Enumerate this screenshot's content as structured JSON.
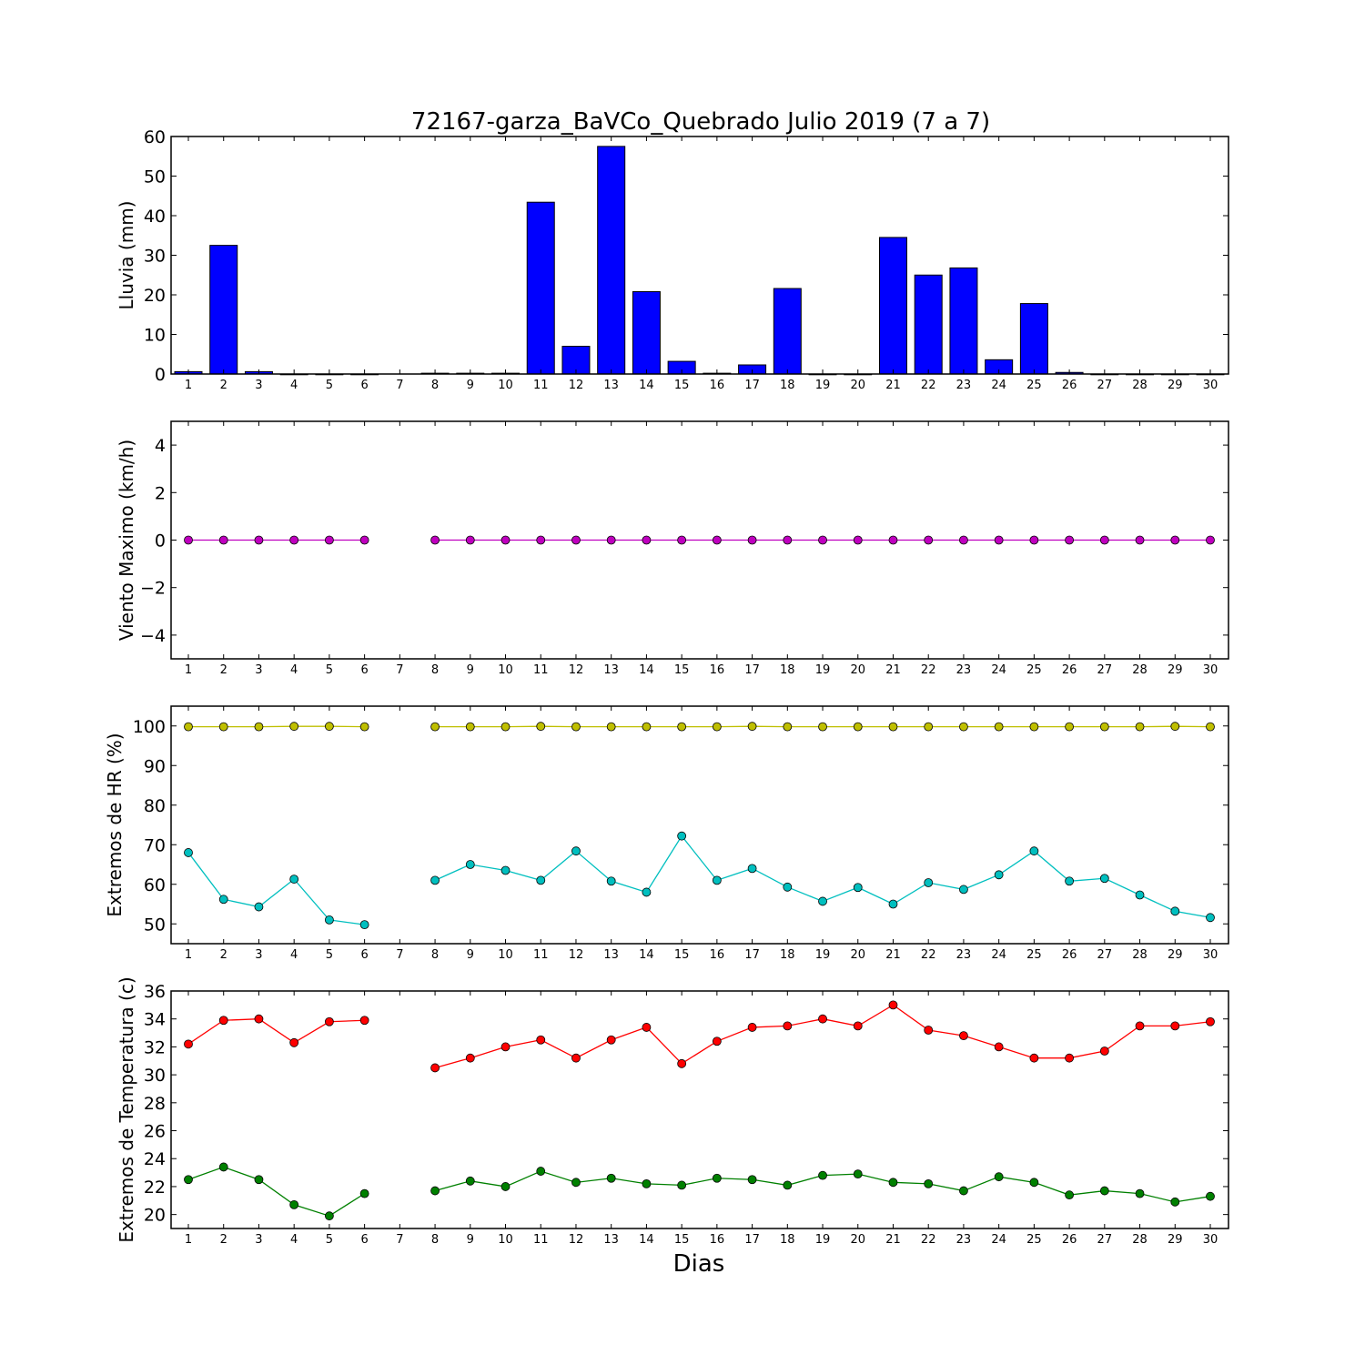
{
  "chart_data": {
    "title": "72167-garza_BaVCo_Quebrado Julio 2019  (7 a 7)",
    "xlabel": "Dias",
    "days": [
      1,
      2,
      3,
      4,
      5,
      6,
      7,
      8,
      9,
      10,
      11,
      12,
      13,
      14,
      15,
      16,
      17,
      18,
      19,
      20,
      21,
      22,
      23,
      24,
      25,
      26,
      27,
      28,
      29,
      30
    ],
    "panels": [
      {
        "id": "rain",
        "type": "bar",
        "ylabel": "Lluvia (mm)",
        "ylim": [
          0,
          60
        ],
        "yticks": [
          0,
          10,
          20,
          30,
          40,
          50,
          60
        ],
        "series": [
          {
            "color": "#0000ff",
            "values": [
              0.6,
              32.5,
              0.6,
              0,
              0,
              0,
              null,
              0.2,
              0.2,
              0.2,
              43.4,
              7.0,
              57.5,
              20.8,
              3.2,
              0.2,
              2.3,
              21.6,
              0,
              0,
              34.5,
              25.0,
              26.8,
              3.6,
              17.8,
              0.4,
              0,
              0,
              0,
              0
            ]
          }
        ]
      },
      {
        "id": "wind",
        "type": "line",
        "ylabel": "Viento Maximo (km/h)",
        "ylim": [
          -5,
          5
        ],
        "yticks": [
          -4,
          -2,
          0,
          2,
          4
        ],
        "series": [
          {
            "color": "#bf00bf",
            "values": [
              0,
              0,
              0,
              0,
              0,
              0,
              null,
              0,
              0,
              0,
              0,
              0,
              0,
              0,
              0,
              0,
              0,
              0,
              0,
              0,
              0,
              0,
              0,
              0,
              0,
              0,
              0,
              0,
              0,
              0
            ]
          }
        ]
      },
      {
        "id": "humidity",
        "type": "line",
        "ylabel": "Extremos de HR (%)",
        "ylim": [
          45,
          105
        ],
        "yticks": [
          50,
          60,
          70,
          80,
          90,
          100
        ],
        "series": [
          {
            "color": "#bfbf00",
            "values": [
              99.8,
              99.8,
              99.8,
              99.9,
              99.9,
              99.8,
              null,
              99.8,
              99.8,
              99.8,
              99.9,
              99.8,
              99.8,
              99.8,
              99.8,
              99.8,
              99.9,
              99.8,
              99.8,
              99.8,
              99.8,
              99.8,
              99.8,
              99.8,
              99.8,
              99.8,
              99.8,
              99.8,
              99.9,
              99.8
            ]
          },
          {
            "color": "#00bfbf",
            "values": [
              68.0,
              56.2,
              54.3,
              61.3,
              51.0,
              49.8,
              null,
              61.0,
              65.0,
              63.5,
              61.0,
              68.4,
              60.8,
              58.0,
              72.2,
              61.0,
              64.0,
              59.3,
              55.7,
              59.2,
              55.0,
              60.4,
              58.7,
              62.4,
              68.4,
              60.8,
              61.5,
              57.3,
              53.2,
              51.6
            ]
          }
        ]
      },
      {
        "id": "temperature",
        "type": "line",
        "ylabel": "Extremos de Temperatura (c)",
        "ylim": [
          19,
          36
        ],
        "yticks": [
          20,
          22,
          24,
          26,
          28,
          30,
          32,
          34,
          36
        ],
        "series": [
          {
            "color": "#ff0000",
            "values": [
              32.2,
              33.9,
              34.0,
              32.3,
              33.8,
              33.9,
              null,
              30.5,
              31.2,
              32.0,
              32.5,
              31.2,
              32.5,
              33.4,
              30.8,
              32.4,
              33.4,
              33.5,
              34.0,
              33.5,
              35.0,
              33.2,
              32.8,
              32.0,
              31.2,
              31.2,
              31.7,
              33.5,
              33.5,
              33.8
            ]
          },
          {
            "color": "#008000",
            "values": [
              22.5,
              23.4,
              22.5,
              20.7,
              19.9,
              21.5,
              null,
              21.7,
              22.4,
              22.0,
              23.1,
              22.3,
              22.6,
              22.2,
              22.1,
              22.6,
              22.5,
              22.1,
              22.8,
              22.9,
              22.3,
              22.2,
              21.7,
              22.7,
              22.3,
              21.4,
              21.7,
              21.5,
              20.9,
              21.3
            ]
          }
        ]
      }
    ]
  }
}
